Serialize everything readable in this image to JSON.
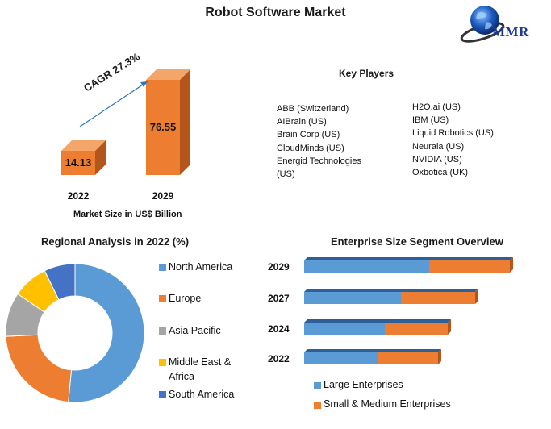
{
  "title": "Robot Software Market",
  "logo": {
    "text": "MMR"
  },
  "market_size": {
    "cagr_label": "CAGR 27.3%",
    "caption": "Market Size in US$ Billion",
    "bars": [
      {
        "year": "2022",
        "value": 14.13,
        "label": "14.13"
      },
      {
        "year": "2029",
        "value": 76.55,
        "label": "76.55"
      }
    ]
  },
  "key_players": {
    "title": "Key Players",
    "column1": [
      "ABB (Switzerland)",
      "AIBrain (US)",
      "Brain Corp (US)",
      "CloudMinds (US)",
      "Energid Technologies (US)"
    ],
    "column2": [
      "H2O.ai (US)",
      "IBM (US)",
      "Liquid Robotics (US)",
      "Neurala (US)",
      "NVIDIA (US)",
      "Oxbotica (UK)"
    ]
  },
  "regional": {
    "title": "Regional Analysis in 2022 (%)"
  },
  "enterprise": {
    "title": "Enterprise Size Segment Overview"
  },
  "colors": {
    "orange": "#ed7d31",
    "orange_dark": "#b4561c",
    "blue": "#5b9bd5",
    "blue_dark": "#3e7ab5",
    "gray": "#a5a5a5",
    "yellow": "#ffc000",
    "navy": "#4472c4"
  },
  "chart_data": [
    {
      "type": "bar",
      "title": "Market Size in US$ Billion",
      "categories": [
        "2022",
        "2029"
      ],
      "values": [
        14.13,
        76.55
      ],
      "annotations": [
        "CAGR 27.3%"
      ]
    },
    {
      "type": "pie",
      "title": "Regional Analysis in 2022 (%)",
      "categories": [
        "North America",
        "Europe",
        "Asia Pacific",
        "Middle East & Africa",
        "South America"
      ],
      "values": [
        50,
        22,
        10,
        8,
        7
      ],
      "legend": "right"
    },
    {
      "type": "bar",
      "title": "Enterprise Size Segment Overview",
      "orientation": "horizontal",
      "stacked": true,
      "categories": [
        "2029",
        "2027",
        "2024",
        "2022"
      ],
      "series": [
        {
          "name": "Large Enterprises",
          "values": [
            155,
            120,
            100,
            92
          ]
        },
        {
          "name": "Small & Medium Enterprises",
          "values": [
            100,
            92,
            78,
            74
          ]
        }
      ],
      "legend": "bottom"
    }
  ]
}
